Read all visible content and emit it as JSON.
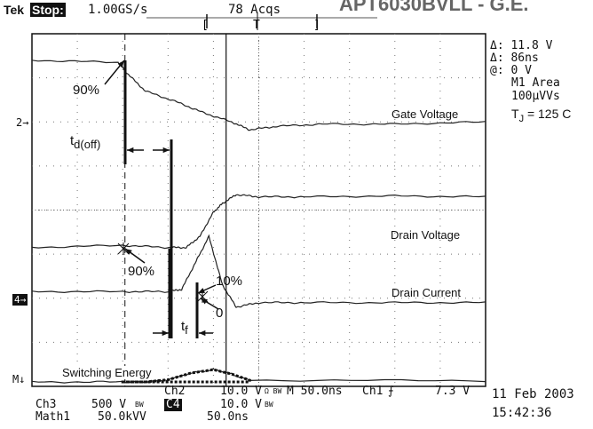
{
  "header": {
    "brand": "Tek",
    "state": "Stop:",
    "sample_rate": "1.00GS/s",
    "acqs": "78 Acqs",
    "corner_title": "APT6030BVLL - G.E."
  },
  "readout": {
    "delta_v": "Δ: 11.8 V",
    "delta_t": "Δ: 86ns",
    "at": "@: 0 V",
    "math_name": "M1 Area",
    "math_value": "100µVVs",
    "tj_label": "T",
    "tj_sub": "J",
    "tj_value": "= 125 C"
  },
  "markers": {
    "ch2": "2→",
    "ch4": "4→",
    "math": "M↓"
  },
  "traces": {
    "gate": "Gate Voltage",
    "drain_v": "Drain Voltage",
    "drain_i": "Drain Current",
    "energy": "Switching Energy"
  },
  "annotations": {
    "gate_90": "90%",
    "td_main": "t",
    "td_sub": "d(off)",
    "drain_90": "90%",
    "drain_10": "10%",
    "drain_0": "0",
    "tf_main": "t",
    "tf_sub": "f"
  },
  "bottom": {
    "ch2": "Ch2",
    "ch2_scale": "10.0 V",
    "ch2_bw": "Ω BW",
    "timebase": "M 50.0ns",
    "trigger_src": "Ch1",
    "trigger_slope": "⨍",
    "trigger_level": "7.3 V",
    "ch3": "Ch3",
    "ch3_scale": "500 V",
    "ch3_bw": "BW",
    "ch4": "C4",
    "ch4_scale": "10.0 V",
    "ch4_bw": "BW",
    "math1": "Math1",
    "math1_scale": "50.0kVV",
    "math1_time": "50.0ns",
    "date": "11 Feb 2003",
    "time": "15:42:36"
  },
  "chart_data": {
    "type": "line",
    "x_unit": "div",
    "xlim": [
      0,
      10
    ],
    "ylim": [
      -4,
      4
    ],
    "grid": true,
    "series": [
      {
        "name": "Gate Voltage",
        "x": [
          0,
          1.9,
          2.1,
          2.5,
          3.2,
          3.8,
          4.4,
          4.8,
          5.4,
          6.4,
          8.0,
          10.0
        ],
        "y": [
          3.4,
          3.35,
          3.1,
          2.7,
          2.45,
          2.2,
          2.0,
          1.82,
          1.9,
          1.95,
          1.95,
          2.0
        ]
      },
      {
        "name": "Drain Voltage",
        "x": [
          0,
          2.0,
          3.0,
          3.4,
          3.7,
          4.0,
          4.2,
          4.5,
          5.0,
          6.0,
          8.0,
          10.0
        ],
        "y": [
          -0.85,
          -0.8,
          -0.85,
          -0.85,
          -0.6,
          -0.05,
          0.15,
          0.35,
          0.3,
          0.3,
          0.32,
          0.3
        ]
      },
      {
        "name": "Drain Current",
        "x": [
          0,
          2.0,
          3.0,
          3.3,
          3.6,
          3.9,
          4.2,
          4.5,
          5.0,
          6.0,
          8.0,
          10.0
        ],
        "y": [
          -1.85,
          -1.85,
          -1.85,
          -1.8,
          -1.2,
          -0.6,
          -1.7,
          -2.2,
          -2.1,
          -2.1,
          -2.1,
          -2.1
        ]
      },
      {
        "name": "Switching Energy",
        "x": [
          0,
          2.0,
          2.5,
          3.0,
          3.5,
          4.0,
          4.4,
          4.8,
          10.0
        ],
        "y": [
          -3.9,
          -3.9,
          -3.9,
          -3.85,
          -3.7,
          -3.62,
          -3.72,
          -3.86,
          -3.87
        ]
      }
    ],
    "cursors_x": [
      2.05,
      4.28
    ]
  }
}
